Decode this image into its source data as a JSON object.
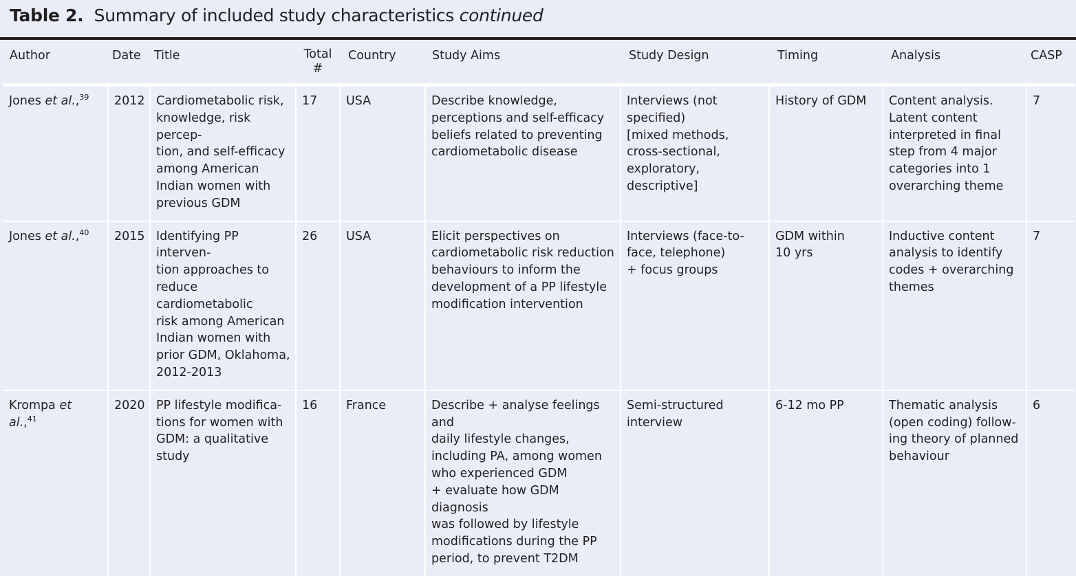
{
  "caption": {
    "label": "Table 2.",
    "text": "Summary of included study characteristics",
    "suffix": "continued"
  },
  "columns": [
    "Author",
    "Date",
    "Title",
    "Total\n#",
    "Country",
    "Study Aims",
    "Study Design",
    "Timing",
    "Analysis",
    "CASP"
  ],
  "rows": [
    {
      "author": "Jones",
      "etal": "et al.",
      "comma": ",",
      "ref": "39",
      "date": "2012",
      "title": "Cardiometabolic risk,\nknowledge, risk percep-\ntion, and self-efficacy\namong American\nIndian women with\nprevious GDM",
      "total": "17",
      "country": "USA",
      "aims": "Describe knowledge,\nperceptions and self-efficacy\nbeliefs related to preventing\ncardiometabolic disease",
      "design": "Interviews (not\nspecified)\n[mixed methods,\ncross-sectional,\nexploratory, descriptive]",
      "timing": "History of GDM",
      "analysis": "Content analysis.\nLatent content\ninterpreted in final\nstep from 4 major\ncategories into 1\noverarching theme",
      "casp": "7"
    },
    {
      "author": "Jones",
      "etal": "et al.",
      "comma": ",",
      "ref": "40",
      "date": "2015",
      "title": "Identifying PP interven-\ntion approaches to\nreduce cardiometabolic\nrisk among American\nIndian women with\nprior GDM, Oklahoma,\n2012-2013",
      "total": "26",
      "country": "USA",
      "aims": "Elicit perspectives on\ncardiometabolic risk reduction\nbehaviours to inform the\ndevelopment of a PP lifestyle\nmodification intervention",
      "design": "Interviews (face-to-\nface, telephone)\n+ focus groups",
      "timing": "GDM within\n10 yrs",
      "analysis": "Inductive content\nanalysis to identify\ncodes + overarching\nthemes",
      "casp": "7"
    },
    {
      "author": "Krompa",
      "etal": "et al.",
      "comma": ",",
      "ref": "41",
      "date": "2020",
      "title": "PP lifestyle modifica-\ntions for women with\nGDM: a qualitative\nstudy",
      "total": "16",
      "country": "France",
      "aims": "Describe + analyse feelings and\ndaily lifestyle changes,\nincluding PA, among women\nwho experienced GDM\n+ evaluate how GDM diagnosis\nwas followed by lifestyle\nmodifications during the PP\nperiod, to prevent T2DM",
      "design": "Semi-structured\ninterview",
      "timing": "6-12 mo PP",
      "analysis": "Thematic analysis\n(open coding) follow-\ning theory of planned\nbehaviour",
      "casp": "6"
    }
  ]
}
